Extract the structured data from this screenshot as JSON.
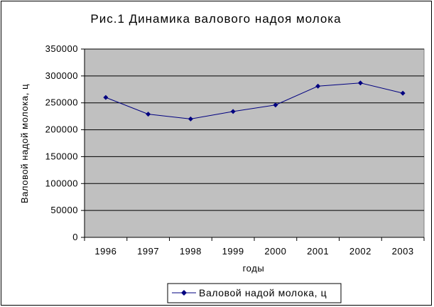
{
  "chart_data": {
    "type": "line",
    "title": "Рис.1 Динамика валового надоя молока",
    "xlabel": "годы",
    "ylabel": "Валовой надой молока, ц",
    "categories": [
      "1996",
      "1997",
      "1998",
      "1999",
      "2000",
      "2001",
      "2002",
      "2003"
    ],
    "series": [
      {
        "name": "Валовой надой молока, ц",
        "values": [
          260000,
          229000,
          220000,
          234000,
          246000,
          281000,
          287000,
          268000
        ],
        "color": "#000080"
      }
    ],
    "ylim": [
      0,
      350000
    ],
    "yticks": [
      "350000",
      "300000",
      "250000",
      "200000",
      "150000",
      "100000",
      "50000",
      "0"
    ],
    "grid": true,
    "legend_position": "bottom",
    "plot_background": "#C0C0C0"
  }
}
